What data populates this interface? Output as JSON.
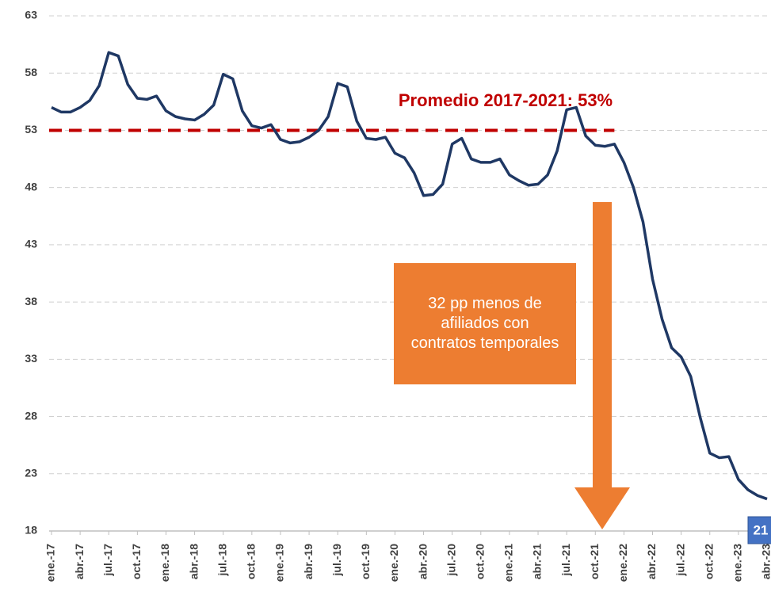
{
  "chart_data": {
    "type": "line",
    "categories": [
      "ene.-17",
      null,
      null,
      "abr.-17",
      null,
      null,
      "jul.-17",
      null,
      null,
      "oct.-17",
      null,
      null,
      "ene.-18",
      null,
      null,
      "abr.-18",
      null,
      null,
      "jul.-18",
      null,
      null,
      "oct.-18",
      null,
      null,
      "ene.-19",
      null,
      null,
      "abr.-19",
      null,
      null,
      "jul.-19",
      null,
      null,
      "oct.-19",
      null,
      null,
      "ene.-20",
      null,
      null,
      "abr.-20",
      null,
      null,
      "jul.-20",
      null,
      null,
      "oct.-20",
      null,
      null,
      "ene.-21",
      null,
      null,
      "abr.-21",
      null,
      null,
      "jul.-21",
      null,
      null,
      "oct.-21",
      null,
      null,
      "ene.-22",
      null,
      null,
      "abr.-22",
      null,
      null,
      "jul.-22",
      null,
      null,
      "oct.-22",
      null,
      null,
      "ene.-23",
      null,
      null,
      "abr.-23"
    ],
    "series": [
      {
        "color": "#1f3864",
        "values": [
          55.0,
          54.6,
          54.6,
          55.0,
          55.6,
          56.9,
          59.8,
          59.5,
          57.0,
          55.8,
          55.7,
          56.0,
          54.7,
          54.2,
          54.0,
          53.9,
          54.4,
          55.2,
          57.9,
          57.5,
          54.7,
          53.4,
          53.2,
          53.5,
          52.2,
          51.9,
          52.0,
          52.4,
          53.0,
          54.2,
          57.1,
          56.8,
          53.8,
          52.3,
          52.2,
          52.4,
          51.0,
          50.6,
          49.3,
          47.3,
          47.4,
          48.3,
          51.8,
          52.3,
          50.5,
          50.2,
          50.2,
          50.5,
          49.1,
          48.6,
          48.2,
          48.3,
          49.1,
          51.2,
          54.8,
          55.0,
          52.5,
          51.7,
          51.6,
          51.8,
          50.2,
          48.0,
          45.0,
          40.0,
          36.5,
          34.0,
          33.2,
          31.5,
          27.9,
          24.8,
          24.4,
          24.5,
          22.5,
          21.6,
          21.1,
          20.8
        ],
        "value_labels": [
          null,
          null,
          null,
          null,
          null,
          null,
          null,
          null,
          null,
          null,
          null,
          null,
          null,
          null,
          null,
          null,
          null,
          null,
          null,
          null,
          null,
          null,
          null,
          null,
          null,
          null,
          null,
          null,
          null,
          null,
          null,
          null,
          null,
          null,
          null,
          null,
          null,
          null,
          null,
          null,
          null,
          null,
          null,
          null,
          null,
          null,
          null,
          null,
          null,
          null,
          null,
          null,
          null,
          null,
          null,
          null,
          null,
          null,
          null,
          null,
          null,
          null,
          null,
          null,
          null,
          null,
          null,
          null,
          null,
          null,
          null,
          null,
          null,
          null,
          null,
          "21"
        ]
      }
    ],
    "ylim": [
      18,
      63
    ],
    "yticks": [
      18,
      23,
      28,
      33,
      38,
      43,
      48,
      53,
      58,
      63
    ],
    "grid": true,
    "reference_line": {
      "value": 53,
      "label": "Promedio 2017-2021: 53%",
      "color": "#c00000"
    },
    "annotation": "32 pp menos de afiliados con contratos temporales"
  }
}
